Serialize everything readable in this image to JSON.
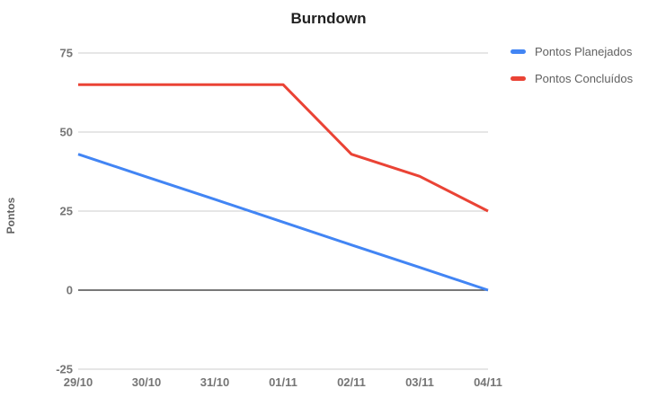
{
  "chart_data": {
    "type": "line",
    "title": "Burndown",
    "xlabel": "",
    "ylabel": "Pontos",
    "categories": [
      "29/10",
      "30/10",
      "31/10",
      "01/11",
      "02/11",
      "03/11",
      "04/11"
    ],
    "series": [
      {
        "name": "Pontos Planejados",
        "color": "#4285f4",
        "values": [
          43,
          35.8,
          28.7,
          21.5,
          14.3,
          7.2,
          0
        ]
      },
      {
        "name": "Pontos Concluídos",
        "color": "#ea4335",
        "values": [
          65,
          65,
          65,
          65,
          43,
          36,
          25
        ]
      }
    ],
    "ylim": [
      -25,
      75
    ],
    "yticks": [
      -25,
      0,
      25,
      50,
      75
    ],
    "grid": true,
    "legend_position": "top-right"
  },
  "colors": {
    "background": "#ffffff",
    "gridline": "#cccccc",
    "zero_baseline": "#4d4d4d",
    "tick_label": "#757575",
    "title_text": "#212121",
    "legend_text": "#616161",
    "axis_title_text": "#616161"
  }
}
